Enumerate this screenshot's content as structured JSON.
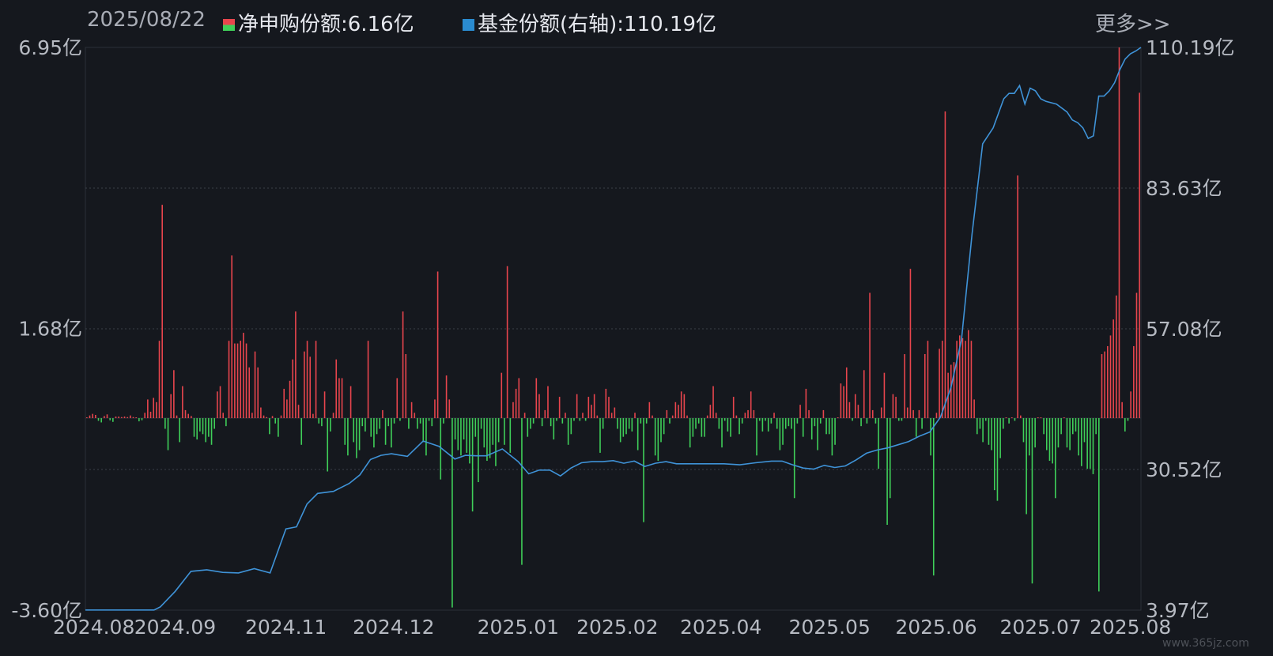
{
  "header": {
    "date": "2025/08/22",
    "net_purchase_label": "净申购份额:6.16亿",
    "fund_share_label": "基金份额(右轴):110.19亿",
    "more_label": "更多>>"
  },
  "colors": {
    "background": "#15181e",
    "up_bar": "#e8454d",
    "down_bar": "#3fcf59",
    "line": "#3f93d8",
    "grid": "#3a3f48",
    "text": "#b6bac2"
  },
  "watermark": "www.365jz.com",
  "chart_data": {
    "type": "bar+line",
    "left_axis": {
      "ticks": [
        "6.95亿",
        "1.68亿",
        "-3.60亿"
      ],
      "range": [
        -3.6,
        6.95
      ]
    },
    "right_axis": {
      "ticks": [
        "110.19亿",
        "83.63亿",
        "57.08亿",
        "30.52亿",
        "3.97亿"
      ],
      "range": [
        3.97,
        110.19
      ]
    },
    "x_ticks": [
      "2024.08",
      "2024.09",
      "2024.11",
      "2024.12",
      "2025.01",
      "2025.02",
      "2025.04",
      "2025.05",
      "2025.06",
      "2025.07",
      "2025.08"
    ],
    "series": [
      {
        "name": "净申购份额",
        "axis": "left",
        "kind": "bar",
        "values": [
          0.01,
          0.05,
          0.08,
          0.06,
          -0.05,
          -0.08,
          0.04,
          0.07,
          -0.04,
          -0.07,
          0.03,
          0.03,
          0.02,
          0.03,
          0.02,
          0.05,
          0.02,
          0.01,
          -0.06,
          -0.04,
          0.1,
          0.35,
          0.12,
          0.38,
          0.3,
          1.45,
          4.0,
          -0.2,
          -0.6,
          0.45,
          0.9,
          0.05,
          -0.45,
          0.6,
          0.15,
          0.08,
          0.04,
          -0.35,
          -0.4,
          -0.25,
          -0.3,
          -0.45,
          -0.35,
          -0.5,
          -0.2,
          0.5,
          0.6,
          0.1,
          -0.15,
          1.45,
          3.05,
          1.4,
          1.4,
          1.45,
          1.6,
          1.4,
          0.95,
          0.1,
          1.25,
          0.95,
          0.2,
          0.05,
          0.02,
          -0.3,
          0.04,
          -0.1,
          -0.35,
          0.05,
          0.55,
          0.35,
          0.7,
          1.1,
          2.0,
          0.25,
          -0.5,
          1.25,
          1.45,
          1.15,
          0.08,
          1.45,
          -0.1,
          -0.15,
          0.5,
          -1.0,
          -0.25,
          0.1,
          1.1,
          0.75,
          0.75,
          -0.5,
          -0.7,
          0.6,
          -0.45,
          -0.75,
          -0.6,
          -0.15,
          -0.25,
          1.45,
          -0.35,
          -0.55,
          -0.3,
          -0.2,
          0.15,
          -0.5,
          -0.15,
          -0.55,
          -0.1,
          0.75,
          -0.05,
          2.0,
          1.2,
          -0.2,
          0.3,
          0.1,
          -0.2,
          -0.1,
          -0.45,
          -0.7,
          -0.05,
          -0.15,
          0.35,
          2.75,
          -1.15,
          -0.1,
          0.8,
          0.35,
          -3.55,
          -0.4,
          -0.6,
          -0.7,
          -0.4,
          -0.65,
          -0.85,
          -1.75,
          -0.35,
          -1.2,
          -0.2,
          -0.55,
          -0.8,
          -0.75,
          -0.5,
          -0.9,
          -0.45,
          0.85,
          -0.5,
          2.85,
          -0.65,
          0.3,
          0.55,
          0.75,
          -2.75,
          0.1,
          -0.35,
          -0.2,
          -0.1,
          0.75,
          0.45,
          -0.15,
          0.15,
          0.6,
          -0.15,
          -0.4,
          -0.05,
          0.4,
          -0.1,
          0.1,
          -0.5,
          -0.3,
          -0.05,
          0.45,
          -0.05,
          0.1,
          -0.05,
          0.4,
          0.25,
          0.45,
          0.05,
          -0.65,
          -0.2,
          0.55,
          0.4,
          0.1,
          0.2,
          -0.2,
          -0.45,
          -0.35,
          -0.3,
          -0.2,
          -0.25,
          0.1,
          -0.6,
          -0.1,
          -1.95,
          -0.1,
          0.3,
          0.05,
          -0.7,
          -0.8,
          -0.45,
          -0.3,
          0.15,
          -0.1,
          0.05,
          0.3,
          0.25,
          0.5,
          0.45,
          0.05,
          -0.55,
          -0.35,
          -0.2,
          -0.1,
          -0.35,
          -0.35,
          0.05,
          0.25,
          0.6,
          0.1,
          -0.2,
          -0.55,
          -0.05,
          -0.25,
          -0.35,
          0.4,
          0.05,
          -0.3,
          -0.1,
          0.1,
          0.15,
          0.5,
          0.15,
          -0.7,
          -0.05,
          -0.25,
          -0.05,
          -0.25,
          -0.1,
          0.1,
          -0.2,
          -0.6,
          -0.5,
          -0.2,
          -0.15,
          -0.2,
          -1.5,
          -0.1,
          0.25,
          -0.35,
          0.55,
          0.15,
          -0.4,
          -0.15,
          -0.6,
          -0.1,
          0.15,
          -0.3,
          -0.3,
          -0.7,
          -0.5,
          0.0,
          0.65,
          0.6,
          0.95,
          0.3,
          -0.05,
          0.45,
          0.25,
          -0.15,
          0.9,
          -0.1,
          2.35,
          0.15,
          -0.1,
          -0.95,
          0.2,
          0.85,
          -2.0,
          -1.5,
          0.45,
          0.4,
          -0.05,
          -0.05,
          1.2,
          0.2,
          2.8,
          0.15,
          -0.35,
          0.15,
          -0.2,
          1.2,
          1.45,
          -0.7,
          -2.95,
          0.1,
          1.3,
          1.45,
          5.75,
          0.85,
          1.0,
          1.05,
          1.45,
          1.55,
          1.5,
          1.45,
          1.65,
          1.45,
          0.35,
          -0.3,
          -0.2,
          -0.45,
          -0.05,
          -0.5,
          -0.6,
          -1.35,
          -1.55,
          -0.75,
          -0.2,
          0.0,
          -0.1,
          0.0,
          -0.05,
          4.55,
          0.05,
          -0.45,
          -1.8,
          -0.7,
          -3.1,
          -0.55,
          0.0,
          0.0,
          -0.3,
          -0.6,
          -0.8,
          -0.85,
          -1.5,
          -0.55,
          -0.3,
          0.0,
          -0.55,
          -0.6,
          -0.3,
          -0.25,
          -0.7,
          -0.9,
          -0.45,
          -0.95,
          -0.95,
          -1.05,
          -0.3,
          -3.25,
          1.2,
          1.25,
          1.35,
          1.55,
          1.85,
          2.3,
          6.95,
          0.3,
          -0.25,
          -0.05,
          0.5,
          1.35,
          2.35,
          6.1
        ]
      },
      {
        "name": "基金份额",
        "axis": "right",
        "kind": "line",
        "x": [
          0,
          0.065,
          0.071,
          0.085,
          0.1,
          0.115,
          0.13,
          0.145,
          0.16,
          0.175,
          0.19,
          0.2,
          0.21,
          0.22,
          0.235,
          0.25,
          0.26,
          0.27,
          0.28,
          0.29,
          0.305,
          0.32,
          0.335,
          0.35,
          0.36,
          0.37,
          0.38,
          0.395,
          0.41,
          0.42,
          0.43,
          0.44,
          0.45,
          0.46,
          0.47,
          0.48,
          0.49,
          0.5,
          0.51,
          0.52,
          0.53,
          0.54,
          0.55,
          0.56,
          0.575,
          0.59,
          0.605,
          0.62,
          0.635,
          0.65,
          0.66,
          0.67,
          0.68,
          0.69,
          0.7,
          0.71,
          0.72,
          0.73,
          0.74,
          0.75,
          0.76,
          0.77,
          0.78,
          0.79,
          0.8,
          0.81,
          0.82,
          0.83,
          0.84,
          0.85,
          0.86,
          0.87,
          0.875,
          0.88,
          0.885,
          0.89,
          0.895,
          0.9,
          0.905,
          0.91,
          0.92,
          0.93,
          0.935,
          0.94,
          0.945,
          0.95,
          0.955,
          0.96,
          0.965,
          0.97,
          0.975,
          0.98,
          0.985,
          0.99,
          0.995,
          1
        ],
        "values": [
          4.0,
          4.0,
          4.6,
          7.5,
          11.3,
          11.6,
          11.1,
          11.0,
          11.8,
          11.0,
          19.3,
          19.7,
          24.0,
          26.0,
          26.4,
          27.9,
          29.5,
          32.4,
          33.2,
          33.5,
          33.0,
          35.9,
          34.9,
          32.5,
          33.2,
          33.1,
          33.1,
          34.4,
          32.0,
          29.7,
          30.4,
          30.4,
          29.3,
          30.8,
          31.8,
          32.0,
          32.0,
          32.2,
          31.7,
          32.1,
          31.1,
          31.7,
          32.0,
          31.6,
          31.6,
          31.6,
          31.6,
          31.4,
          31.8,
          32.1,
          32.1,
          31.4,
          30.8,
          30.6,
          31.3,
          30.9,
          31.2,
          32.3,
          33.6,
          34.2,
          34.6,
          35.2,
          35.8,
          36.8,
          37.6,
          40.4,
          46.0,
          55.0,
          75.0,
          92.0,
          95.0,
          100.5,
          101.5,
          101.5,
          103.0,
          99.5,
          102.5,
          102.0,
          100.5,
          100.0,
          99.5,
          98.0,
          96.5,
          96.0,
          95.0,
          93.0,
          93.5,
          101.0,
          101.0,
          102.0,
          103.5,
          106.0,
          108.0,
          109.0,
          109.5,
          110.19
        ]
      }
    ]
  }
}
